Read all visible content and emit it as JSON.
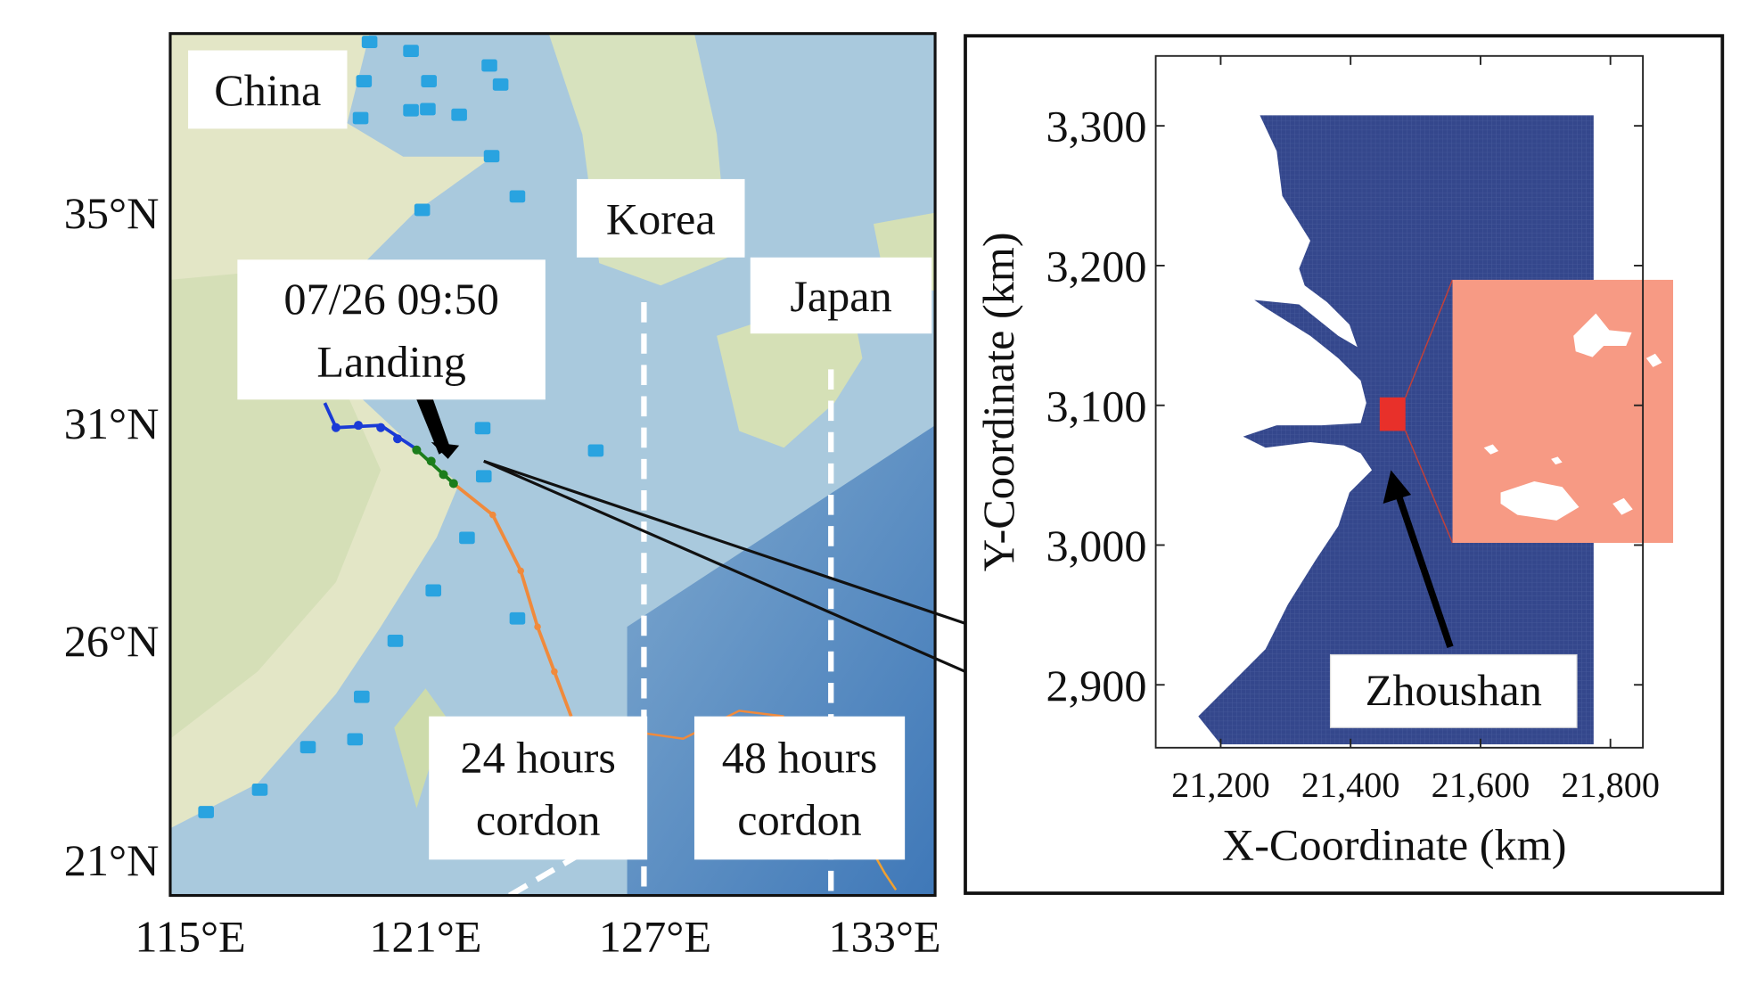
{
  "map": {
    "annotations": [
      {
        "lines": [
          "China"
        ]
      },
      {
        "lines": [
          "Korea"
        ]
      },
      {
        "lines": [
          "Japan"
        ]
      },
      {
        "lines": [
          "07/26 09:50",
          "Landing"
        ]
      },
      {
        "lines": [
          "24 hours",
          "cordon"
        ]
      },
      {
        "lines": [
          "48 hours",
          "cordon"
        ]
      }
    ],
    "lat_labels": [
      "35°N",
      "31°N",
      "26°N",
      "21°N"
    ],
    "lon_labels": [
      "115°E",
      "121°E",
      "127°E",
      "133°E"
    ]
  },
  "chart_data": {
    "type": "mesh",
    "x_label": "X-Coordinate (km)",
    "y_label": "Y-Coordinate (km)",
    "xlim": [
      21100,
      21850
    ],
    "ylim": [
      2855,
      3350
    ],
    "xticks": [
      {
        "value": 21200,
        "label": "21,200"
      },
      {
        "value": 21400,
        "label": "21,400"
      },
      {
        "value": 21600,
        "label": "21,600"
      },
      {
        "value": 21800,
        "label": "21,800"
      }
    ],
    "yticks": [
      {
        "value": 2900,
        "label": "2,900"
      },
      {
        "value": 3000,
        "label": "3,000"
      },
      {
        "value": 3100,
        "label": "3,100"
      },
      {
        "value": 3200,
        "label": "3,200"
      },
      {
        "value": 3300,
        "label": "3,300"
      }
    ],
    "annotation": "Zhoushan"
  }
}
